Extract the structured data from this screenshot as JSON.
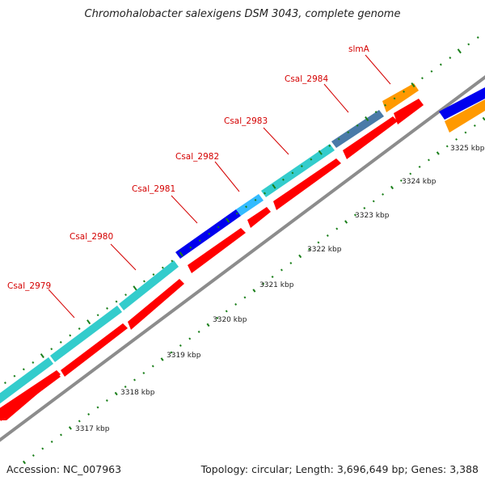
{
  "title": "Chromohalobacter salexigens DSM 3043, complete genome",
  "footer": {
    "accession": "Accession: NC_007963",
    "summary": "Topology: circular; Length: 3,696,649 bp; Genes: 3,388"
  },
  "colors": {
    "backbone": "#8c8c8c",
    "cds_reverse": "#ff0000",
    "gene_cyan": "#33cccc",
    "gene_blue": "#0000ee",
    "gene_lightblue": "#33bbff",
    "gene_steel": "#4a7aa8",
    "gene_orange": "#ff9900",
    "ticks": "#1a7f1a",
    "label_color": "#d40000"
  },
  "scale_ticks": [
    {
      "label": "3317 kbp"
    },
    {
      "label": "3318 kbp"
    },
    {
      "label": "3319 kbp"
    },
    {
      "label": "3320 kbp"
    },
    {
      "label": "3321 kbp"
    },
    {
      "label": "3322 kbp"
    },
    {
      "label": "3323 kbp"
    },
    {
      "label": "3324 kbp"
    },
    {
      "label": "3325 kbp"
    }
  ],
  "gene_labels": [
    {
      "name": "Csal_2979"
    },
    {
      "name": "Csal_2980"
    },
    {
      "name": "Csal_2981"
    },
    {
      "name": "Csal_2982"
    },
    {
      "name": "Csal_2983"
    },
    {
      "name": "Csal_2984"
    },
    {
      "name": "slmA"
    }
  ]
}
